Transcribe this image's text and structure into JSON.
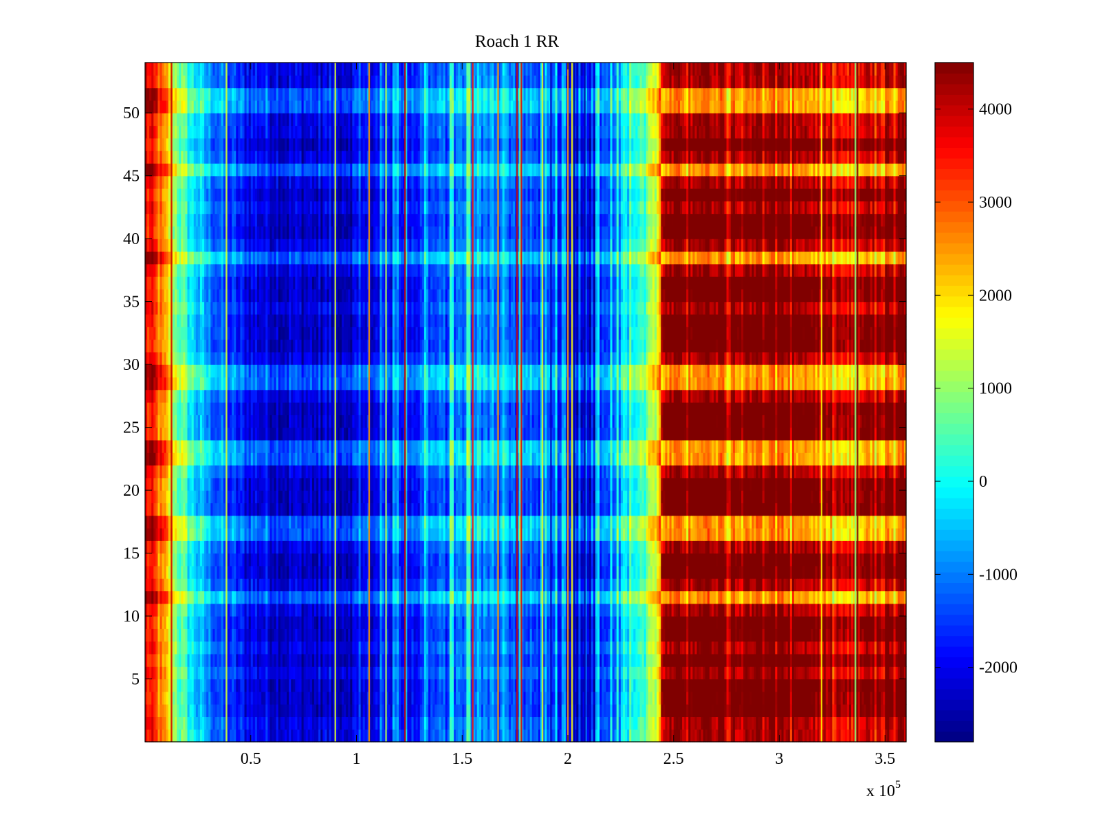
{
  "chart_data": {
    "type": "heatmap",
    "title": "Roach 1 RR",
    "xlabel": "",
    "ylabel": "",
    "x_multiplier_base": "x 10",
    "x_multiplier_exponent": "5",
    "xlim": [
      0,
      3.6
    ],
    "ylim": [
      0,
      54
    ],
    "x_ticks": [
      0.5,
      1,
      1.5,
      2,
      2.5,
      3,
      3.5
    ],
    "x_tick_labels": [
      "0.5",
      "1",
      "1.5",
      "2",
      "2.5",
      "3",
      "3.5"
    ],
    "y_ticks": [
      5,
      10,
      15,
      20,
      25,
      30,
      35,
      40,
      45,
      50
    ],
    "y_tick_labels": [
      "5",
      "10",
      "15",
      "20",
      "25",
      "30",
      "35",
      "40",
      "45",
      "50"
    ],
    "n_rows": 54,
    "colormap": "jet",
    "clim": [
      -2800,
      4500
    ],
    "colorbar_ticks": [
      -2000,
      -1000,
      0,
      1000,
      2000,
      3000,
      4000
    ],
    "colorbar_tick_labels": [
      "-2000",
      "-1000",
      "0",
      "1000",
      "2000",
      "3000",
      "4000"
    ],
    "column_profile": [
      {
        "x": 0.0,
        "value": 3800
      },
      {
        "x": 0.05,
        "value": 3200
      },
      {
        "x": 0.1,
        "value": 2200
      },
      {
        "x": 0.15,
        "value": 1000
      },
      {
        "x": 0.22,
        "value": 0
      },
      {
        "x": 0.3,
        "value": -800
      },
      {
        "x": 0.45,
        "value": -1700
      },
      {
        "x": 0.7,
        "value": -2100
      },
      {
        "x": 1.0,
        "value": -2000
      },
      {
        "x": 1.3,
        "value": -1500
      },
      {
        "x": 1.5,
        "value": -1000
      },
      {
        "x": 1.7,
        "value": -900
      },
      {
        "x": 1.9,
        "value": -1500
      },
      {
        "x": 2.05,
        "value": -2100
      },
      {
        "x": 2.15,
        "value": -1800
      },
      {
        "x": 2.25,
        "value": -600
      },
      {
        "x": 2.35,
        "value": 500
      },
      {
        "x": 2.42,
        "value": 1500
      },
      {
        "x": 2.45,
        "value": 4000
      },
      {
        "x": 2.6,
        "value": 4400
      },
      {
        "x": 3.1,
        "value": 4300
      },
      {
        "x": 3.2,
        "value": 3900
      },
      {
        "x": 3.35,
        "value": 3300
      },
      {
        "x": 3.45,
        "value": 4100
      },
      {
        "x": 3.6,
        "value": 4200
      }
    ],
    "bright_rows": [
      11,
      16,
      17,
      22,
      23,
      28,
      29,
      38,
      45,
      50,
      51
    ],
    "dark_rows": [
      2,
      3,
      4,
      6,
      8,
      9,
      13,
      14,
      18,
      19,
      20,
      24,
      25,
      26,
      31,
      32,
      33,
      35,
      36,
      40,
      41,
      43,
      47
    ],
    "vertical_streaks": [
      {
        "x": 0.125,
        "value": 4000
      },
      {
        "x": 0.385,
        "value": 1500
      },
      {
        "x": 0.9,
        "value": 1500
      },
      {
        "x": 1.06,
        "value": 2500
      },
      {
        "x": 1.14,
        "value": 1200
      },
      {
        "x": 1.23,
        "value": 4000
      },
      {
        "x": 1.55,
        "value": 3500
      },
      {
        "x": 1.67,
        "value": 2500
      },
      {
        "x": 1.76,
        "value": 4000
      },
      {
        "x": 1.78,
        "value": 3800
      },
      {
        "x": 1.88,
        "value": 1500
      },
      {
        "x": 2.0,
        "value": 2500
      },
      {
        "x": 2.02,
        "value": 1800
      },
      {
        "x": 3.37,
        "value": 4500
      }
    ],
    "cool_streaks": [
      {
        "x": 2.03,
        "value": -2600
      },
      {
        "x": 2.08,
        "value": -2500
      },
      {
        "x": 1.92,
        "value": -2300
      },
      {
        "x": 3.2,
        "value": 1800
      },
      {
        "x": 3.36,
        "value": 900
      }
    ]
  }
}
